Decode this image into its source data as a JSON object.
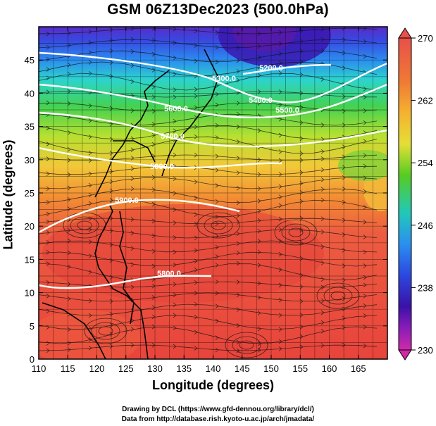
{
  "title": "GSM 06Z13Dec2023 (500.0hPa)",
  "axes": {
    "xlabel": "Longitude (degrees)",
    "ylabel": "Latitude  (degrees)",
    "xticks": [
      "110",
      "115",
      "120",
      "125",
      "130",
      "135",
      "140",
      "145",
      "150",
      "155",
      "160",
      "165"
    ],
    "yticks": [
      "0",
      "5",
      "10",
      "15",
      "20",
      "25",
      "30",
      "35",
      "40",
      "45"
    ],
    "xlim": [
      110,
      170
    ],
    "ylim": [
      0,
      50
    ]
  },
  "colorbar": {
    "min": 230,
    "max": 270,
    "labels": [
      "270",
      "262",
      "254",
      "246",
      "238",
      "230"
    ],
    "colors": [
      "#e8504a",
      "#f59a2c",
      "#f7d23a",
      "#55cc22",
      "#22c5c8",
      "#2c70e8",
      "#3a12a8",
      "#cc22aa"
    ]
  },
  "contours": {
    "labels": [
      "5200.0",
      "5300.0",
      "5400.0",
      "5500.0",
      "5600.0",
      "5700.0",
      "5800.0",
      "5900.0",
      "5800.0"
    ],
    "color": "#ffffff"
  },
  "credits": {
    "line1": "Drawing by DCL (https://www.gfd-dennou.org/library/dcl/)",
    "line2": "Data from http://database.rish.kyoto-u.ac.jp/arch/jmadata/"
  }
}
